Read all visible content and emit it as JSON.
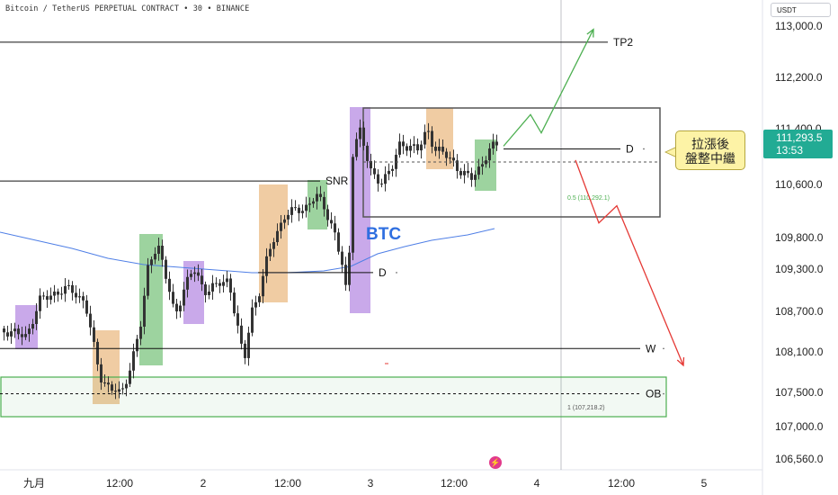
{
  "header": {
    "title": "Bitcoin / TetherUS PERPETUAL CONTRACT • 30 • BINANCE",
    "quote_currency": "USDT"
  },
  "current_price": {
    "value": "111,293.5",
    "countdown": "13:53"
  },
  "note": {
    "line1": "拉漲後",
    "line2": "盤整中繼"
  },
  "brand_icon": "tradingview-logo-icon",
  "colors": {
    "up": "#22ab94",
    "down": "#f23645",
    "candle": "#333333",
    "ma": "#4f7fe6",
    "zone_green": "#4caf50",
    "zone_orange": "#e3a258",
    "zone_purple": "#9c63d8",
    "projection_up": "#4caf50",
    "projection_down": "#e53935",
    "btc_text": "#2f6fe0"
  },
  "chart_data": {
    "type": "candlestick",
    "symbol": "BTCUSDT.P",
    "label": "BTC",
    "timeframe": "30",
    "ylim": [
      106300,
      113500
    ],
    "y_ticks": [
      "113,000.0",
      "112,200.0",
      "111,400.0",
      "110,600.0",
      "109,800.0",
      "109,300.0",
      "108,700.0",
      "108,100.0",
      "107,500.0",
      "107,000.0",
      "106,560.0"
    ],
    "x_ticks": [
      "九月",
      "12:00",
      "2",
      "12:00",
      "3",
      "12:00",
      "4",
      "12:00",
      "5"
    ],
    "levels": [
      {
        "label": "TP2",
        "price": 112750
      },
      {
        "label": "SNR",
        "price": 110650
      },
      {
        "label": "D",
        "price": 111110
      },
      {
        "label": "D",
        "price": 109250
      },
      {
        "label": "W",
        "price": 108150
      },
      {
        "label": "OB",
        "price": 107480
      }
    ],
    "fib_annotations": [
      {
        "label": "0.5 (110,292.1)",
        "price": 110292.1
      },
      {
        "label": "1 (107,218.2)",
        "price": 107218.2
      }
    ],
    "projections": {
      "bullish": [
        [
          111150,
          0
        ],
        [
          111620,
          1
        ],
        [
          111340,
          2
        ],
        [
          112950,
          3
        ]
      ],
      "bearish": [
        [
          110950,
          0
        ],
        [
          110020,
          1
        ],
        [
          110280,
          2
        ],
        [
          107900,
          3
        ]
      ]
    }
  }
}
